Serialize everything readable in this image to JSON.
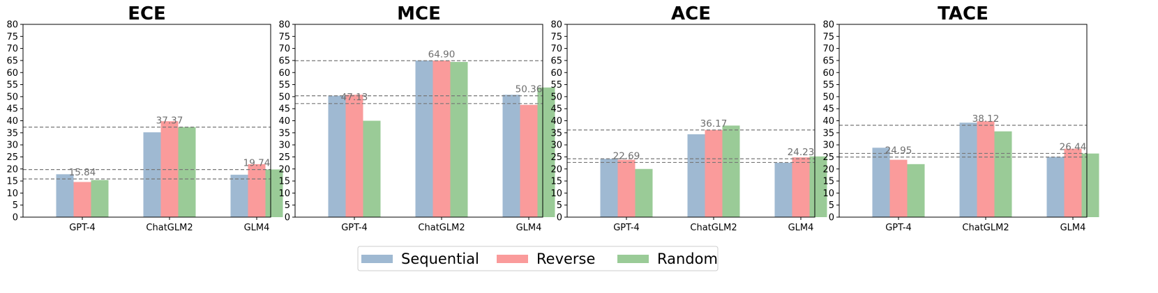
{
  "chart_data": [
    {
      "type": "bar",
      "title": "ECE",
      "categories": [
        "GPT-4",
        "ChatGLM2",
        "GLM4"
      ],
      "series": [
        {
          "name": "Sequential",
          "values": [
            17.8,
            35.2,
            17.6
          ]
        },
        {
          "name": "Reverse",
          "values": [
            14.6,
            39.8,
            22.0
          ]
        },
        {
          "name": "Random",
          "values": [
            15.4,
            37.4,
            19.8
          ]
        }
      ],
      "reference_lines": [
        15.84,
        37.37,
        19.74
      ],
      "annotations": [
        "15.84",
        "37.37",
        "19.74"
      ],
      "ylim": [
        0,
        80
      ],
      "yticks": [
        "0",
        "5",
        "10",
        "15",
        "20",
        "25",
        "30",
        "35",
        "40",
        "45",
        "50",
        "55",
        "60",
        "65",
        "70",
        "75",
        "80"
      ]
    },
    {
      "type": "bar",
      "title": "MCE",
      "categories": [
        "GPT-4",
        "ChatGLM2",
        "GLM4"
      ],
      "series": [
        {
          "name": "Sequential",
          "values": [
            50.4,
            65.0,
            50.8
          ]
        },
        {
          "name": "Reverse",
          "values": [
            50.8,
            65.0,
            46.6
          ]
        },
        {
          "name": "Random",
          "values": [
            40.0,
            64.4,
            53.8
          ]
        }
      ],
      "reference_lines": [
        47.13,
        64.9,
        50.36
      ],
      "annotations": [
        "47.13",
        "64.90",
        "50.36"
      ],
      "ylim": [
        0,
        80
      ],
      "yticks": [
        "0",
        "5",
        "10",
        "15",
        "20",
        "25",
        "30",
        "35",
        "40",
        "45",
        "50",
        "55",
        "60",
        "65",
        "70",
        "75",
        "80"
      ]
    },
    {
      "type": "bar",
      "title": "ACE",
      "categories": [
        "GPT-4",
        "ChatGLM2",
        "GLM4"
      ],
      "series": [
        {
          "name": "Sequential",
          "values": [
            24.2,
            34.4,
            22.6
          ]
        },
        {
          "name": "Reverse",
          "values": [
            23.8,
            36.2,
            24.8
          ]
        },
        {
          "name": "Random",
          "values": [
            20.0,
            38.0,
            25.2
          ]
        }
      ],
      "reference_lines": [
        22.69,
        36.17,
        24.23
      ],
      "annotations": [
        "22.69",
        "36.17",
        "24.23"
      ],
      "ylim": [
        0,
        80
      ],
      "yticks": [
        "0",
        "5",
        "10",
        "15",
        "20",
        "25",
        "30",
        "35",
        "40",
        "45",
        "50",
        "55",
        "60",
        "65",
        "70",
        "75",
        "80"
      ]
    },
    {
      "type": "bar",
      "title": "TACE",
      "categories": [
        "GPT-4",
        "ChatGLM2",
        "GLM4"
      ],
      "series": [
        {
          "name": "Sequential",
          "values": [
            28.8,
            39.2,
            25.0
          ]
        },
        {
          "name": "Reverse",
          "values": [
            23.8,
            39.8,
            28.4
          ]
        },
        {
          "name": "Random",
          "values": [
            22.0,
            35.6,
            26.4
          ]
        }
      ],
      "reference_lines": [
        24.95,
        38.12,
        26.44
      ],
      "annotations": [
        "24.95",
        "38.12",
        "26.44"
      ],
      "ylim": [
        0,
        80
      ],
      "yticks": [
        "0",
        "5",
        "10",
        "15",
        "20",
        "25",
        "30",
        "35",
        "40",
        "45",
        "50",
        "55",
        "60",
        "65",
        "70",
        "75",
        "80"
      ]
    }
  ],
  "legend": {
    "position": "bottom-center",
    "items": [
      "Sequential",
      "Reverse",
      "Random"
    ]
  },
  "colors": {
    "Sequential": "#9fb9d2",
    "Reverse": "#fa9b9b",
    "Random": "#9acb97",
    "reference_line": "#777777"
  },
  "grid": false
}
